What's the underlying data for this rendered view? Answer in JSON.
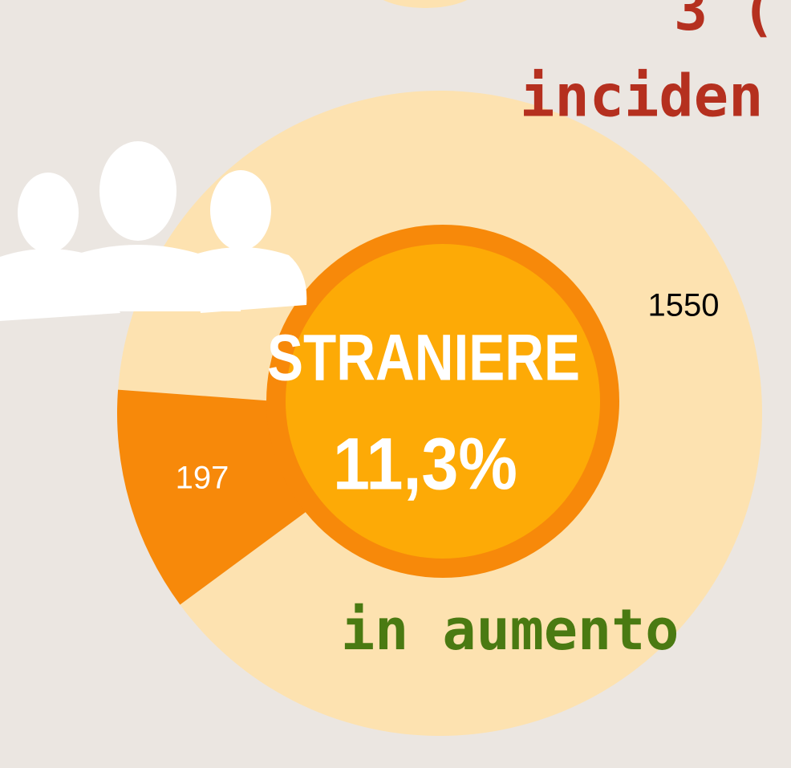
{
  "chart_data": {
    "type": "pie",
    "categories": [
      null,
      null
    ],
    "values": [
      1550,
      197
    ],
    "colors": [
      "#fde2b0",
      "#f7890a"
    ],
    "label_colors": [
      "#000000",
      "#ffffff"
    ],
    "center_title": "STRANIERE",
    "center_value_label": "11,3%",
    "annotations": [
      "3 (",
      "inciden",
      "in aumento"
    ]
  }
}
